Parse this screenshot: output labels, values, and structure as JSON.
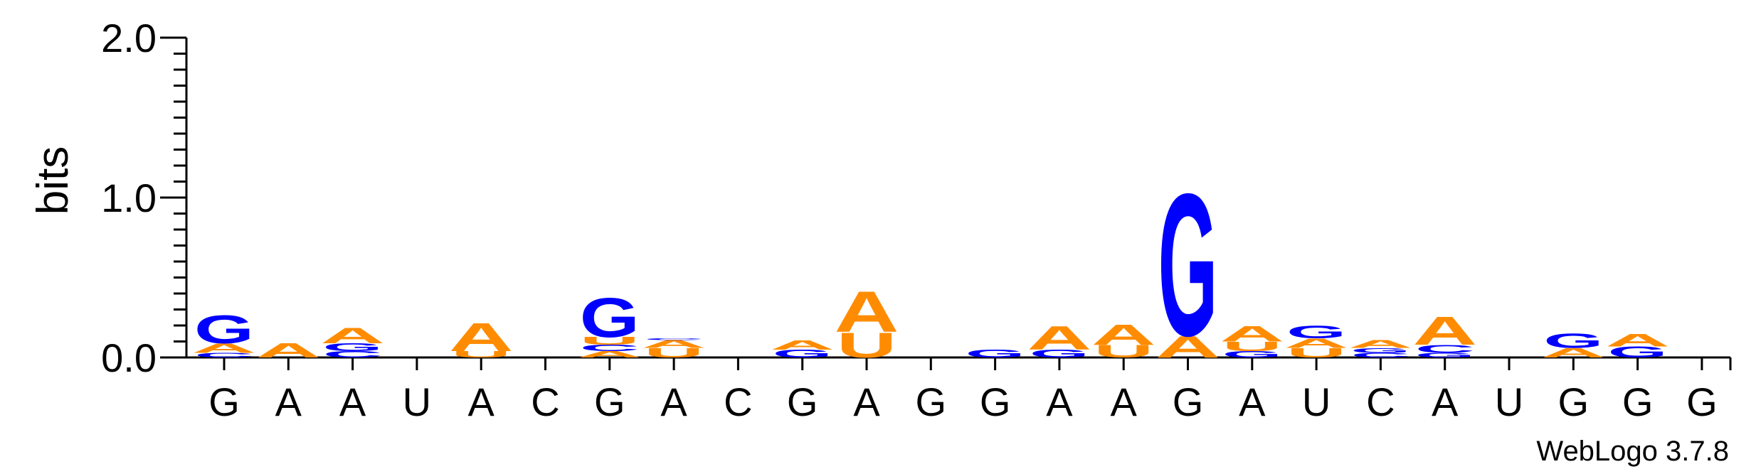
{
  "colors": {
    "A": "#ff8c00",
    "U": "#ff8c00",
    "G": "#0000ff",
    "C": "#0000ff",
    "axis": "#000000"
  },
  "footer": {
    "label": "WebLogo 3.7.8"
  },
  "chart_data": {
    "type": "sequence-logo",
    "ylabel": "bits",
    "ylim": [
      0,
      2.0
    ],
    "yticks": [
      "0.0",
      "1.0",
      "2.0"
    ],
    "consensus": [
      "G",
      "A",
      "A",
      "U",
      "A",
      "C",
      "G",
      "A",
      "C",
      "G",
      "A",
      "G",
      "G",
      "A",
      "A",
      "G",
      "A",
      "U",
      "C",
      "A",
      "U",
      "G",
      "G",
      "G"
    ],
    "stacks": [
      [
        [
          "C",
          0.03
        ],
        [
          "A",
          0.06
        ],
        [
          "G",
          0.18
        ]
      ],
      [
        [
          "A",
          0.09
        ]
      ],
      [
        [
          "C",
          0.04
        ],
        [
          "G",
          0.05
        ],
        [
          "A",
          0.1
        ]
      ],
      [],
      [
        [
          "U",
          0.04
        ],
        [
          "A",
          0.18
        ]
      ],
      [],
      [
        [
          "A",
          0.04
        ],
        [
          "C",
          0.04
        ],
        [
          "U",
          0.05
        ],
        [
          "G",
          0.25
        ]
      ],
      [
        [
          "U",
          0.06
        ],
        [
          "A",
          0.05
        ],
        [
          "C",
          0.01
        ]
      ],
      [],
      [
        [
          "G",
          0.05
        ],
        [
          "A",
          0.06
        ]
      ],
      [
        [
          "U",
          0.16
        ],
        [
          "A",
          0.26
        ]
      ],
      [],
      [
        [
          "G",
          0.05
        ]
      ],
      [
        [
          "G",
          0.05
        ],
        [
          "A",
          0.15
        ]
      ],
      [
        [
          "U",
          0.08
        ],
        [
          "A",
          0.13
        ]
      ],
      [
        [
          "A",
          0.14
        ],
        [
          "G",
          0.91
        ]
      ],
      [
        [
          "G",
          0.04
        ],
        [
          "U",
          0.06
        ],
        [
          "A",
          0.1
        ]
      ],
      [
        [
          "U",
          0.06
        ],
        [
          "A",
          0.06
        ],
        [
          "G",
          0.08
        ]
      ],
      [
        [
          "C",
          0.03
        ],
        [
          "G",
          0.03
        ],
        [
          "A",
          0.05
        ]
      ],
      [
        [
          "G",
          0.03
        ],
        [
          "C",
          0.05
        ],
        [
          "A",
          0.18
        ]
      ],
      [],
      [
        [
          "A",
          0.06
        ],
        [
          "G",
          0.09
        ]
      ],
      [
        [
          "G",
          0.07
        ],
        [
          "A",
          0.08
        ]
      ],
      []
    ]
  }
}
